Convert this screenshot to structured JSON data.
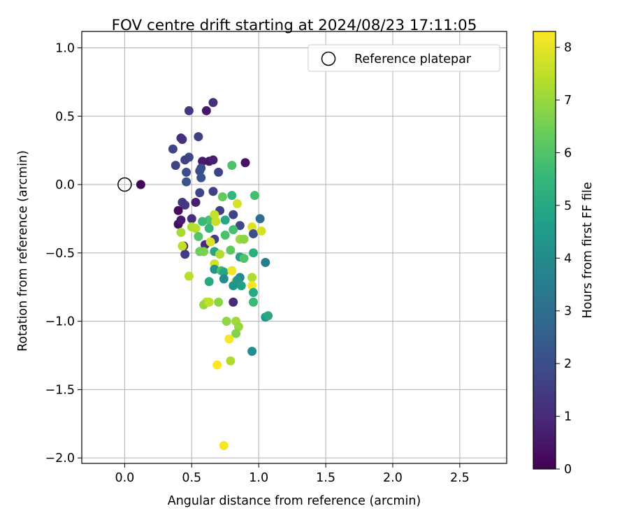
{
  "chart_data": {
    "type": "scatter",
    "title": "FOV centre drift starting at 2024/08/23 17:11:05",
    "xlabel": "Angular distance from reference (arcmin)",
    "ylabel": "Rotation from reference (arcmin)",
    "xlim": [
      -0.32,
      2.85
    ],
    "ylim": [
      -2.04,
      1.12
    ],
    "xticks": [
      0.0,
      0.5,
      1.0,
      1.5,
      2.0,
      2.5
    ],
    "xtick_labels": [
      "0.0",
      "0.5",
      "1.0",
      "1.5",
      "2.0",
      "2.5"
    ],
    "yticks": [
      1.0,
      0.5,
      0.0,
      -0.5,
      -1.0,
      -1.5,
      -2.0
    ],
    "ytick_labels": [
      "1.0",
      "0.5",
      "0.0",
      "−0.5",
      "−1.0",
      "−1.5",
      "−2.0"
    ],
    "grid": true,
    "legend": {
      "position": "top-right",
      "entries": [
        "Reference platepar"
      ]
    },
    "reference_point": {
      "x": 0.0,
      "y": 0.0
    },
    "colorbar": {
      "label": "Hours from first FF file",
      "colormap": "viridis",
      "range": [
        0,
        8.3
      ],
      "ticks": [
        0,
        1,
        2,
        3,
        4,
        5,
        6,
        7,
        8
      ],
      "tick_labels": [
        "0",
        "1",
        "2",
        "3",
        "4",
        "5",
        "6",
        "7",
        "8"
      ],
      "stops": [
        "#440154",
        "#482878",
        "#3e4989",
        "#31688e",
        "#26828e",
        "#1f9e89",
        "#35b779",
        "#6ece58",
        "#b5de2b",
        "#fde725"
      ]
    },
    "series": [
      {
        "points": [
          [
            0.12,
            0.0,
            0.1
          ],
          [
            0.61,
            0.54,
            0.5
          ],
          [
            0.48,
            0.54,
            1.4
          ],
          [
            0.66,
            0.6,
            1.1
          ],
          [
            0.42,
            0.34,
            1.0
          ],
          [
            0.43,
            0.33,
            1.2
          ],
          [
            0.55,
            0.35,
            1.6
          ],
          [
            0.36,
            0.26,
            1.7
          ],
          [
            0.48,
            0.2,
            1.8
          ],
          [
            0.45,
            0.18,
            1.6
          ],
          [
            0.58,
            0.17,
            0.6
          ],
          [
            0.63,
            0.17,
            0.5
          ],
          [
            0.66,
            0.18,
            0.7
          ],
          [
            0.57,
            0.12,
            1.9
          ],
          [
            0.38,
            0.14,
            1.7
          ],
          [
            0.56,
            0.1,
            2.0
          ],
          [
            0.46,
            0.09,
            2.0
          ],
          [
            0.7,
            0.09,
            1.7
          ],
          [
            0.57,
            0.05,
            2.1
          ],
          [
            0.46,
            0.02,
            2.2
          ],
          [
            0.9,
            0.16,
            0.4
          ],
          [
            0.8,
            0.14,
            5.9
          ],
          [
            0.56,
            -0.06,
            1.7
          ],
          [
            0.66,
            -0.05,
            1.6
          ],
          [
            0.43,
            -0.13,
            1.4
          ],
          [
            0.45,
            -0.15,
            1.3
          ],
          [
            0.53,
            -0.13,
            0.7
          ],
          [
            0.4,
            -0.19,
            0.3
          ],
          [
            0.4,
            -0.29,
            0.3
          ],
          [
            0.42,
            -0.26,
            0.6
          ],
          [
            0.5,
            -0.25,
            1.1
          ],
          [
            0.73,
            -0.09,
            6.3
          ],
          [
            0.8,
            -0.08,
            5.5
          ],
          [
            0.84,
            -0.14,
            7.8
          ],
          [
            0.97,
            -0.08,
            5.8
          ],
          [
            0.71,
            -0.19,
            1.6
          ],
          [
            0.81,
            -0.22,
            1.7
          ],
          [
            0.63,
            -0.26,
            5.9
          ],
          [
            0.67,
            -0.22,
            7.6
          ],
          [
            0.75,
            -0.26,
            4.9
          ],
          [
            0.68,
            -0.27,
            7.6
          ],
          [
            0.58,
            -0.27,
            5.6
          ],
          [
            0.86,
            -0.3,
            1.8
          ],
          [
            1.01,
            -0.25,
            3.0
          ],
          [
            0.5,
            -0.31,
            7.3
          ],
          [
            0.53,
            -0.32,
            7.4
          ],
          [
            0.63,
            -0.32,
            5.5
          ],
          [
            0.81,
            -0.33,
            5.8
          ],
          [
            0.95,
            -0.31,
            7.9
          ],
          [
            0.96,
            -0.36,
            2.0
          ],
          [
            1.02,
            -0.34,
            7.8
          ],
          [
            0.42,
            -0.35,
            7.2
          ],
          [
            0.55,
            -0.38,
            6.0
          ],
          [
            0.67,
            -0.4,
            1.6
          ],
          [
            0.75,
            -0.37,
            5.9
          ],
          [
            0.86,
            -0.4,
            7.1
          ],
          [
            0.89,
            -0.4,
            6.8
          ],
          [
            0.44,
            -0.45,
            0.6
          ],
          [
            0.6,
            -0.44,
            1.0
          ],
          [
            0.64,
            -0.42,
            7.8
          ],
          [
            0.67,
            -0.49,
            4.9
          ],
          [
            0.56,
            -0.49,
            6.4
          ],
          [
            0.59,
            -0.49,
            6.6
          ],
          [
            0.71,
            -0.51,
            7.3
          ],
          [
            0.79,
            -0.48,
            6.2
          ],
          [
            0.86,
            -0.53,
            4.7
          ],
          [
            0.89,
            -0.54,
            6.0
          ],
          [
            0.96,
            -0.5,
            5.2
          ],
          [
            1.05,
            -0.57,
            3.6
          ],
          [
            0.45,
            -0.51,
            1.5
          ],
          [
            0.43,
            -0.45,
            7.5
          ],
          [
            0.67,
            -0.58,
            7.7
          ],
          [
            0.67,
            -0.62,
            4.2
          ],
          [
            0.72,
            -0.63,
            5.8
          ],
          [
            0.74,
            -0.64,
            4.9
          ],
          [
            0.74,
            -0.69,
            4.0
          ],
          [
            0.8,
            -0.63,
            8.1
          ],
          [
            0.83,
            -0.71,
            7.3
          ],
          [
            0.86,
            -0.68,
            3.9
          ],
          [
            0.84,
            -0.7,
            4.3
          ],
          [
            0.95,
            -0.68,
            7.3
          ],
          [
            0.48,
            -0.67,
            7.4
          ],
          [
            0.63,
            -0.71,
            5.0
          ],
          [
            0.81,
            -0.74,
            4.3
          ],
          [
            0.87,
            -0.74,
            4.6
          ],
          [
            0.95,
            -0.74,
            8.2
          ],
          [
            0.96,
            -0.79,
            5.0
          ],
          [
            0.61,
            -0.86,
            7.5
          ],
          [
            0.7,
            -0.86,
            6.8
          ],
          [
            0.81,
            -0.86,
            1.0
          ],
          [
            0.96,
            -0.86,
            5.6
          ],
          [
            0.59,
            -0.88,
            7.0
          ],
          [
            0.63,
            -0.86,
            7.5
          ],
          [
            0.76,
            -1.0,
            6.9
          ],
          [
            0.83,
            -1.0,
            7.1
          ],
          [
            0.85,
            -1.04,
            7.0
          ],
          [
            0.83,
            -1.09,
            6.7
          ],
          [
            1.05,
            -0.97,
            4.5
          ],
          [
            1.07,
            -0.96,
            5.0
          ],
          [
            0.78,
            -1.13,
            8.2
          ],
          [
            0.79,
            -1.29,
            7.3
          ],
          [
            0.69,
            -1.32,
            8.3
          ],
          [
            0.95,
            -1.22,
            4.1
          ],
          [
            0.74,
            -1.91,
            8.2
          ]
        ]
      }
    ]
  }
}
